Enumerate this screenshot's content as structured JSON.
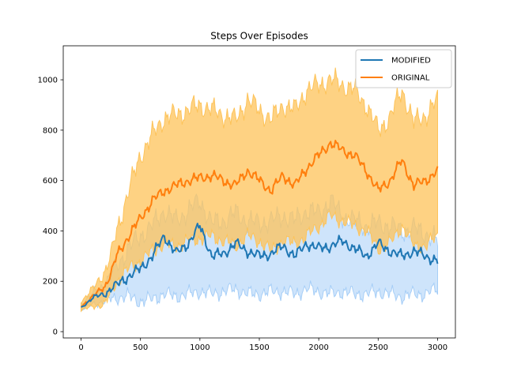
{
  "chart_data": {
    "type": "line",
    "title": "Steps Over Episodes",
    "xlabel": "",
    "ylabel": "",
    "xlim": [
      -150,
      3150
    ],
    "ylim": [
      -25,
      1135
    ],
    "xticks": [
      0,
      500,
      1000,
      1500,
      2000,
      2500,
      3000
    ],
    "xtick_labels": [
      "0",
      "500",
      "1000",
      "1500",
      "2000",
      "2500",
      "3000"
    ],
    "yticks": [
      0,
      200,
      400,
      600,
      800,
      1000
    ],
    "ytick_labels": [
      "0",
      "200",
      "400",
      "600",
      "800",
      "1000"
    ],
    "grid": false,
    "legend_position": "upper right",
    "series": [
      {
        "name": "MODIFIED",
        "color": "#1f77b4",
        "band_color": "#a6cef7",
        "x": [
          0,
          100,
          200,
          250,
          300,
          400,
          500,
          600,
          700,
          800,
          900,
          1000,
          1100,
          1200,
          1300,
          1400,
          1500,
          1600,
          1700,
          1800,
          1900,
          2000,
          2100,
          2200,
          2300,
          2400,
          2500,
          2600,
          2700,
          2800,
          2900,
          3000
        ],
        "mean": [
          95,
          135,
          150,
          170,
          185,
          220,
          250,
          300,
          380,
          310,
          350,
          420,
          300,
          310,
          350,
          320,
          300,
          310,
          340,
          300,
          350,
          330,
          340,
          360,
          330,
          300,
          350,
          320,
          300,
          320,
          300,
          280
        ],
        "lower": [
          85,
          110,
          120,
          130,
          135,
          140,
          120,
          130,
          150,
          140,
          150,
          160,
          150,
          160,
          170,
          150,
          150,
          160,
          160,
          150,
          170,
          160,
          150,
          160,
          150,
          150,
          160,
          150,
          140,
          150,
          150,
          170
        ],
        "upper": [
          110,
          150,
          190,
          220,
          260,
          330,
          380,
          420,
          480,
          440,
          480,
          520,
          430,
          440,
          470,
          440,
          430,
          440,
          460,
          440,
          480,
          470,
          520,
          460,
          440,
          420,
          430,
          420,
          400,
          410,
          390,
          360
        ]
      },
      {
        "name": "ORIGINAL",
        "color": "#ff7f0e",
        "band_color": "#fdc35a",
        "x": [
          0,
          100,
          200,
          250,
          300,
          400,
          500,
          600,
          700,
          800,
          900,
          1000,
          1100,
          1200,
          1300,
          1400,
          1500,
          1600,
          1700,
          1800,
          1900,
          2000,
          2100,
          2200,
          2300,
          2400,
          2500,
          2600,
          2700,
          2800,
          2900,
          3000
        ],
        "mean": [
          100,
          140,
          180,
          230,
          300,
          380,
          450,
          520,
          560,
          580,
          600,
          610,
          620,
          600,
          580,
          640,
          600,
          560,
          620,
          580,
          650,
          700,
          750,
          720,
          700,
          640,
          560,
          600,
          680,
          580,
          600,
          640
        ],
        "lower": [
          85,
          100,
          110,
          150,
          200,
          250,
          280,
          320,
          350,
          340,
          360,
          370,
          380,
          360,
          340,
          380,
          360,
          320,
          360,
          350,
          380,
          420,
          460,
          440,
          420,
          400,
          330,
          350,
          420,
          340,
          340,
          380
        ],
        "upper": [
          120,
          170,
          240,
          300,
          400,
          560,
          700,
          780,
          850,
          860,
          880,
          900,
          880,
          860,
          840,
          920,
          880,
          840,
          900,
          880,
          960,
          980,
          1000,
          980,
          960,
          900,
          800,
          850,
          960,
          830,
          860,
          920
        ]
      }
    ]
  }
}
